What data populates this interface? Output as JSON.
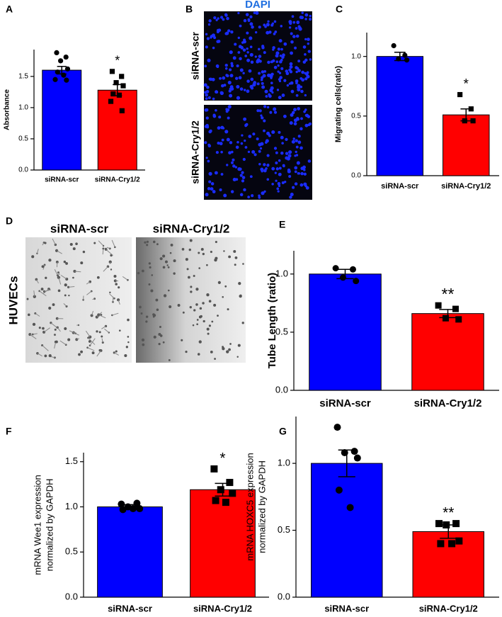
{
  "chart_data": [
    {
      "type": "bar",
      "label": "A",
      "ylabel": [
        "Absorbance"
      ],
      "categories": [
        "siRNA-scr",
        "siRNA-Cry1/2"
      ],
      "colors": [
        "#0000ff",
        "#ff0000"
      ],
      "values": [
        1.6,
        1.28
      ],
      "errors": [
        0.06,
        0.09
      ],
      "points": [
        [
          1.88,
          1.81,
          1.75,
          1.62,
          1.57,
          1.52,
          1.45,
          1.44
        ],
        [
          1.58,
          1.5,
          1.4,
          1.35,
          1.22,
          1.2,
          1.1,
          0.95
        ]
      ],
      "annotation": "*",
      "ylim": [
        0,
        1.93
      ],
      "yticks": [
        {
          "value": 0,
          "label": "0.0"
        },
        0.5,
        {
          "value": 1,
          "label": "1.0"
        },
        1.5
      ]
    },
    {
      "type": "bar",
      "label": "C",
      "ylabel": [
        "Migrating cells(ratio)"
      ],
      "categories": [
        "siRNA-scr",
        "siRNA-Cry1/2"
      ],
      "colors": [
        "#0000ff",
        "#ff0000"
      ],
      "values": [
        1.0,
        0.51
      ],
      "errors": [
        0.035,
        0.05
      ],
      "points": [
        [
          1.09,
          1.01,
          0.98,
          0.97
        ],
        [
          0.68,
          0.56,
          0.46,
          0.46
        ]
      ],
      "annotation": "*",
      "ylim": [
        0,
        1.2
      ],
      "yticks": [
        {
          "value": 0,
          "label": "0.0"
        },
        0.5,
        {
          "value": 1,
          "label": "1.0"
        }
      ]
    },
    {
      "type": "bar",
      "label": "E",
      "ylabel": [
        "Tube Length (ratio)"
      ],
      "categories": [
        "siRNA-scr",
        "siRNA-Cry1/2"
      ],
      "colors": [
        "#0000ff",
        "#ff0000"
      ],
      "values": [
        1.0,
        0.66
      ],
      "errors": [
        0.04,
        0.035
      ],
      "points": [
        [
          1.05,
          1.04,
          0.97,
          0.94
        ],
        [
          0.73,
          0.7,
          0.62,
          0.61
        ]
      ],
      "annotation": "**",
      "ylim": [
        0,
        1.2
      ],
      "yticks": [
        {
          "value": 0,
          "label": "0.0"
        },
        0.5,
        {
          "value": 1,
          "label": "1.0"
        }
      ]
    },
    {
      "type": "bar",
      "label": "F",
      "ylabel": [
        "mRNA Wee1 expression",
        "normalized by GAPDH"
      ],
      "categories": [
        "siRNA-scr",
        "siRNA-Cry1/2"
      ],
      "colors": [
        "#0000ff",
        "#ff0000"
      ],
      "values": [
        1.0,
        1.19
      ],
      "errors": [
        0.025,
        0.07
      ],
      "points": [
        [
          1.03,
          1.04,
          1.0,
          0.98,
          0.97,
          0.98
        ],
        [
          1.42,
          1.27,
          1.19,
          1.15,
          1.07,
          1.05
        ]
      ],
      "annotation": "*",
      "ylim": [
        0,
        1.6
      ],
      "yticks": [
        {
          "value": 0,
          "label": "0.0"
        },
        0.5,
        {
          "value": 1,
          "label": "1.0"
        },
        1.5
      ]
    },
    {
      "type": "bar",
      "label": "G",
      "ylabel": [
        "mRNA HOXC5 expression",
        "normalized by GAPDH"
      ],
      "categories": [
        "siRNA-scr",
        "siRNA-Cry1/2"
      ],
      "colors": [
        "#0000ff",
        "#ff0000"
      ],
      "values": [
        1.0,
        0.49
      ],
      "errors": [
        0.1,
        0.05
      ],
      "points": [
        [
          1.27,
          1.09,
          1.08,
          1.04,
          0.8,
          0.67
        ],
        [
          0.55,
          0.55,
          0.54,
          0.42,
          0.4,
          0.4
        ]
      ],
      "annotation": "**",
      "ylim": [
        0,
        1.35
      ],
      "yticks": [
        {
          "value": 0,
          "label": "0.0"
        },
        0.5,
        {
          "value": 1,
          "label": "1.0"
        }
      ]
    }
  ],
  "images": [
    {
      "label": "B",
      "title": "DAPI",
      "rows": [
        "siRNA-scr",
        "siRNA-Cry1/2"
      ]
    },
    {
      "label": "D",
      "columns": [
        "siRNA-scr",
        "siRNA-Cry1/2"
      ],
      "row": "HUVECs"
    }
  ]
}
